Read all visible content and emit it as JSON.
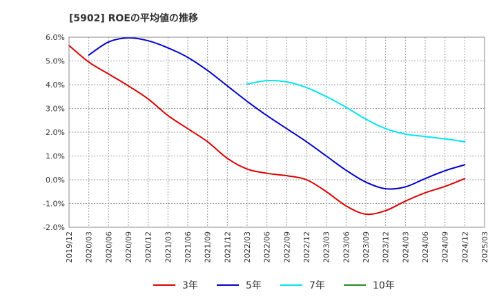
{
  "chart_data": {
    "type": "line",
    "title": "[5902]  ROEの平均値の推移",
    "xlabel": "",
    "ylabel": "",
    "ylim": [
      -2.0,
      6.0
    ],
    "y_ticks": [
      "6.0%",
      "5.0%",
      "4.0%",
      "3.0%",
      "2.0%",
      "1.0%",
      "0.0%",
      "-1.0%",
      "-2.0%"
    ],
    "y_tick_values": [
      6,
      5,
      4,
      3,
      2,
      1,
      0,
      -1,
      -2
    ],
    "x_ticks": [
      "2019/12",
      "2020/03",
      "2020/06",
      "2020/09",
      "2020/12",
      "2021/03",
      "2021/06",
      "2021/09",
      "2021/12",
      "2022/03",
      "2022/06",
      "2022/09",
      "2022/12",
      "2023/03",
      "2023/06",
      "2023/09",
      "2023/12",
      "2024/03",
      "2024/06",
      "2024/09",
      "2024/12",
      "2025/03"
    ],
    "grid": true,
    "legend_position": "bottom",
    "series": [
      {
        "name": "3年",
        "color": "#dd0000",
        "x": [
          "2019/12",
          "2020/03",
          "2020/06",
          "2020/09",
          "2020/12",
          "2021/03",
          "2021/06",
          "2021/09",
          "2021/12",
          "2022/03",
          "2022/06",
          "2022/09",
          "2022/12",
          "2023/03",
          "2023/06",
          "2023/09",
          "2023/12",
          "2024/03",
          "2024/06",
          "2024/09",
          "2024/12"
        ],
        "values": [
          5.65,
          4.95,
          4.45,
          3.95,
          3.4,
          2.7,
          2.15,
          1.6,
          0.9,
          0.45,
          0.27,
          0.17,
          0.0,
          -0.5,
          -1.1,
          -1.45,
          -1.3,
          -0.9,
          -0.55,
          -0.28,
          0.05
        ]
      },
      {
        "name": "5年",
        "color": "#0000cc",
        "x": [
          "2020/03",
          "2020/06",
          "2020/09",
          "2020/12",
          "2021/03",
          "2021/06",
          "2021/09",
          "2021/12",
          "2022/03",
          "2022/06",
          "2022/09",
          "2022/12",
          "2023/03",
          "2023/06",
          "2023/09",
          "2023/12",
          "2024/03",
          "2024/06",
          "2024/09",
          "2024/12"
        ],
        "values": [
          5.25,
          5.8,
          5.97,
          5.85,
          5.55,
          5.15,
          4.6,
          3.95,
          3.3,
          2.7,
          2.15,
          1.6,
          1.0,
          0.4,
          -0.1,
          -0.38,
          -0.3,
          0.05,
          0.38,
          0.63
        ]
      },
      {
        "name": "7年",
        "color": "#00e5ee",
        "x": [
          "2022/03",
          "2022/06",
          "2022/09",
          "2022/12",
          "2023/03",
          "2023/06",
          "2023/09",
          "2023/12",
          "2024/03",
          "2024/06",
          "2024/09",
          "2024/12"
        ],
        "values": [
          4.03,
          4.17,
          4.12,
          3.88,
          3.5,
          3.05,
          2.55,
          2.15,
          1.92,
          1.82,
          1.72,
          1.6
        ]
      },
      {
        "name": "10年",
        "color": "#228b22",
        "x": [],
        "values": []
      }
    ]
  }
}
